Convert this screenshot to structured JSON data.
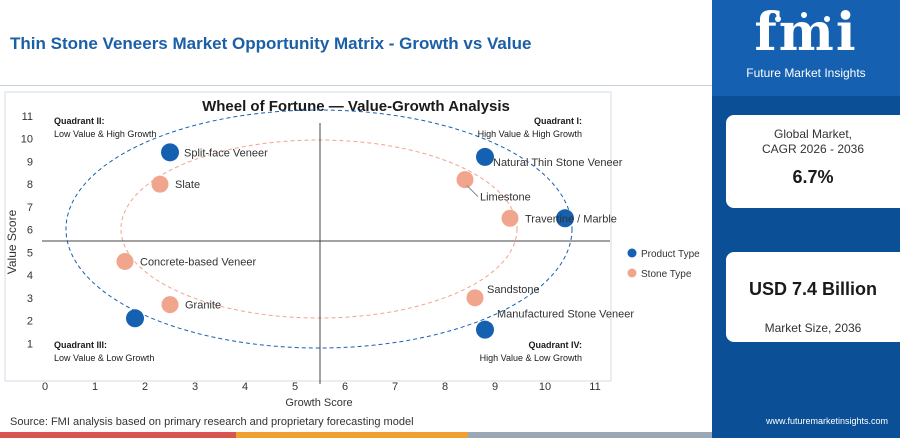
{
  "header": {
    "title": "Thin Stone Veneers Market Opportunity Matrix - Growth vs Value"
  },
  "brand": {
    "logo_text": "fmi",
    "logo_subtitle": "Future Market Insights",
    "website": "www.futuremarketinsights.com"
  },
  "stats": [
    {
      "label": "Global Market,",
      "sublabel": "CAGR 2026 - 2036",
      "value": "6.7%"
    },
    {
      "label": "Market Size, 2036",
      "value": "USD 7.4 Billion"
    }
  ],
  "footer": {
    "source": "Source: FMI analysis based on primary research and proprietary forecasting model"
  },
  "colors": {
    "title": "#1b5fa6",
    "product": "#1560b0",
    "stone": "#f0a58c",
    "sidebar": "#0b4f96"
  },
  "chart_data": {
    "type": "scatter",
    "title": "Wheel of Fortune — Value-Growth Analysis",
    "xlabel": "Growth Score",
    "ylabel": "Value Score",
    "xlim": [
      0,
      11
    ],
    "ylim": [
      0,
      11
    ],
    "xticks": [
      0,
      1,
      2,
      3,
      4,
      5,
      6,
      7,
      8,
      9,
      10,
      11
    ],
    "yticks": [
      1,
      2,
      3,
      4,
      5,
      6,
      7,
      8,
      9,
      10,
      11
    ],
    "divider": {
      "x": 5.5,
      "y": 5.5
    },
    "quadrants": [
      {
        "name": "Quadrant II:",
        "desc": "Low Value & High Growth",
        "position": "top-left"
      },
      {
        "name": "Quadrant I:",
        "desc": "High Value & High Growth",
        "position": "top-right"
      },
      {
        "name": "Quadrant III:",
        "desc": "Low Value & Low Growth",
        "position": "bottom-left"
      },
      {
        "name": "Quadrant IV:",
        "desc": "High Value & Low Growth",
        "position": "bottom-right"
      }
    ],
    "legend": {
      "position": "right",
      "entries": [
        "Product Type",
        "Stone Type"
      ]
    },
    "series": [
      {
        "name": "Product Type",
        "points": [
          {
            "label": "Split-face Veneer",
            "x": 2.5,
            "y": 9.4
          },
          {
            "label": "Natural Thin Stone Veneer",
            "x": 8.8,
            "y": 9.2
          },
          {
            "label": "Travertine / Marble",
            "x": 10.4,
            "y": 6.5
          },
          {
            "label": "Manufactured Stone Veneer",
            "x": 8.8,
            "y": 1.6
          },
          {
            "label": "",
            "x": 1.8,
            "y": 2.1
          }
        ]
      },
      {
        "name": "Stone Type",
        "points": [
          {
            "label": "Slate",
            "x": 2.3,
            "y": 8.0
          },
          {
            "label": "Limestone",
            "x": 8.4,
            "y": 8.2
          },
          {
            "label": "",
            "x": 9.3,
            "y": 6.5
          },
          {
            "label": "Concrete-based Veneer",
            "x": 1.6,
            "y": 4.6
          },
          {
            "label": "Granite",
            "x": 2.5,
            "y": 2.7
          },
          {
            "label": "Sandstone",
            "x": 8.6,
            "y": 3.0
          }
        ]
      }
    ]
  }
}
